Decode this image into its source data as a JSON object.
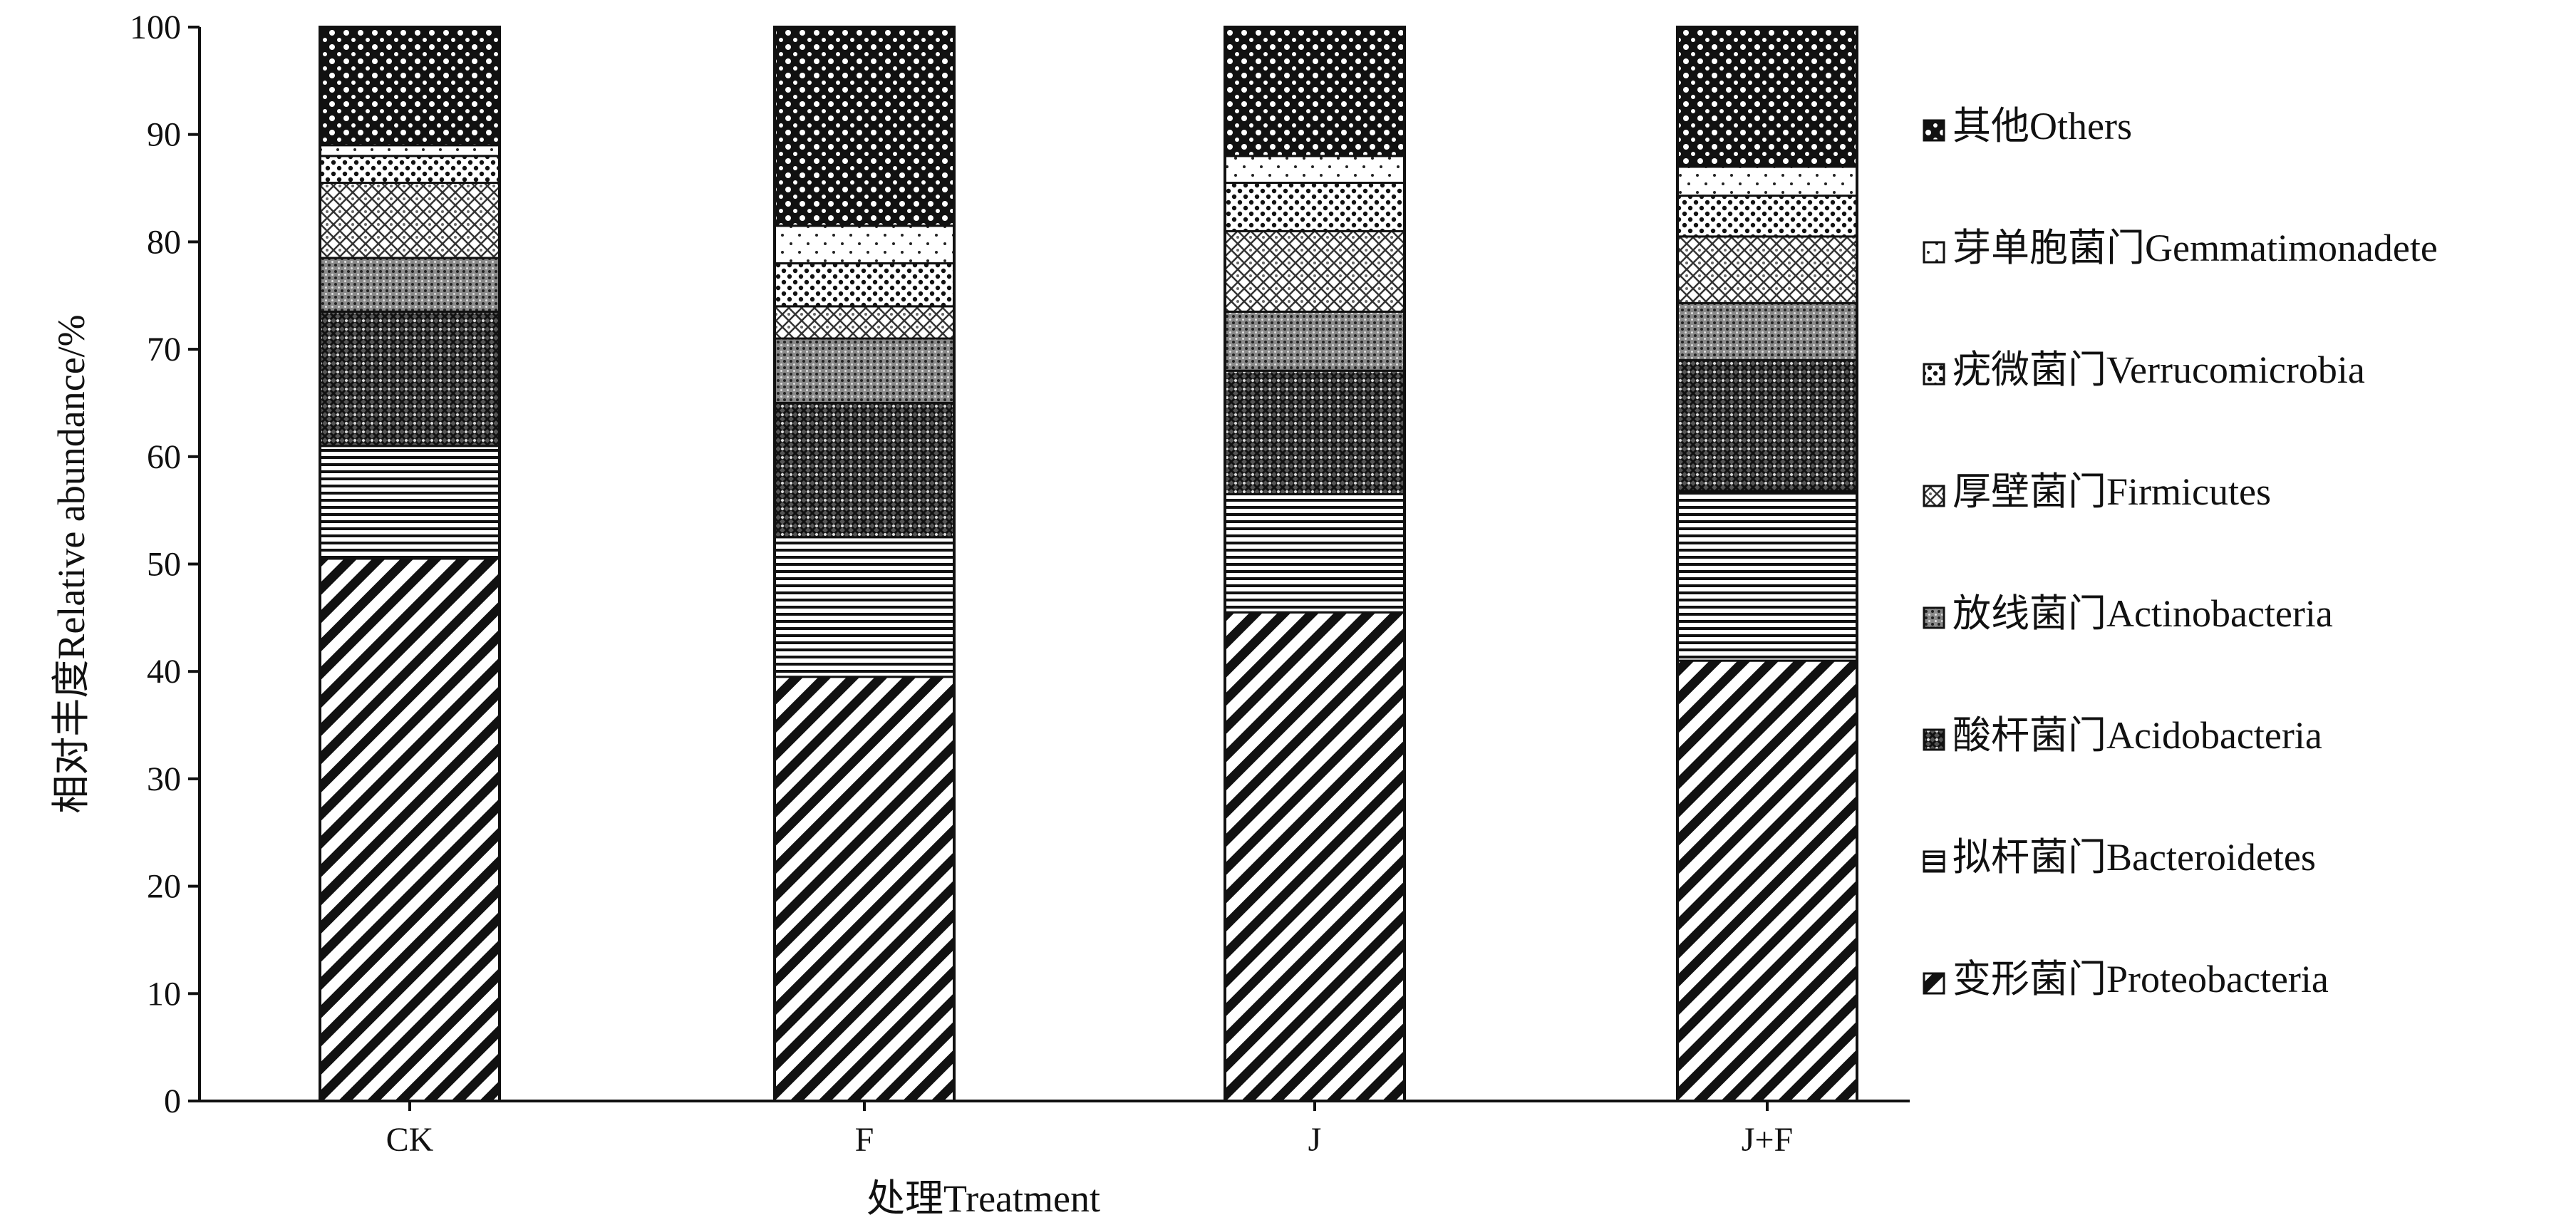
{
  "chart_data": {
    "type": "bar",
    "stacked": true,
    "title": "",
    "xlabel": "处理Treatment",
    "ylabel": "相对丰度Relative abundance/%",
    "ylim": [
      0,
      100
    ],
    "yticks": [
      0,
      10,
      20,
      30,
      40,
      50,
      60,
      70,
      80,
      90,
      100
    ],
    "categories": [
      "CK",
      "F",
      "J",
      "J+F"
    ],
    "grid": false,
    "legend_position": "right",
    "series": [
      {
        "name": "变形菌门Proteobacteria",
        "pattern": "diagonal-stripes",
        "values": [
          50.5,
          39.5,
          45.5,
          41.0
        ]
      },
      {
        "name": "拟杆菌门Bacteroidetes",
        "pattern": "horizontal-lines",
        "values": [
          10.5,
          13.0,
          11.0,
          15.8
        ]
      },
      {
        "name": "酸杆菌门Acidobacteria",
        "pattern": "crosshatch",
        "values": [
          12.5,
          12.5,
          11.5,
          12.2
        ]
      },
      {
        "name": "放线菌门Actinobacteria",
        "pattern": "fine-dots",
        "values": [
          5.0,
          6.0,
          5.5,
          5.3
        ]
      },
      {
        "name": "厚壁菌门Firmicutes",
        "pattern": "diamond-lattice",
        "values": [
          7.0,
          3.0,
          7.5,
          6.2
        ]
      },
      {
        "name": "疣微菌门Verrucomicrobia",
        "pattern": "dot-grid",
        "values": [
          2.5,
          4.0,
          4.5,
          3.8
        ]
      },
      {
        "name": "芽单胞菌门Gemmatimonadete",
        "pattern": "sparse-dots",
        "values": [
          1.0,
          3.5,
          2.5,
          2.7
        ]
      },
      {
        "name": "其他Others",
        "pattern": "circles-on-black",
        "values": [
          11.0,
          18.5,
          12.0,
          13.0
        ]
      }
    ]
  }
}
